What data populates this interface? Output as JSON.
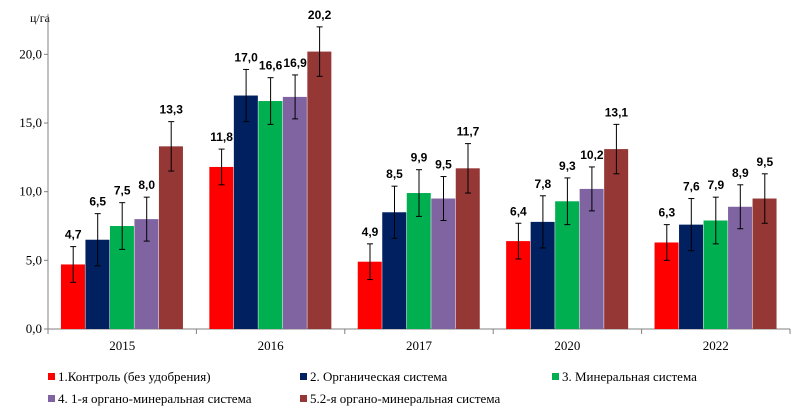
{
  "chart_data": {
    "type": "bar",
    "ylabel": "ц/га",
    "ylim": [
      0,
      22.5
    ],
    "yticks": [
      "0,0",
      "5,0",
      "10,0",
      "15,0",
      "20,0"
    ],
    "ytick_values": [
      0,
      5,
      10,
      15,
      20
    ],
    "grid": false,
    "legend_position": "bottom",
    "categories": [
      "2015",
      "2016",
      "2017",
      "2020",
      "2022"
    ],
    "series": [
      {
        "name": "1.Контроль (без удобрения)",
        "color": "#ff0000",
        "values": [
          4.7,
          11.8,
          4.9,
          6.4,
          6.3
        ],
        "labels": [
          "4,7",
          "11,8",
          "4,9",
          "6,4",
          "6,3"
        ],
        "error": [
          1.3,
          1.3,
          1.3,
          1.3,
          1.3
        ]
      },
      {
        "name": "2. Органическая система",
        "color": "#002060",
        "values": [
          6.5,
          17.0,
          8.5,
          7.8,
          7.6
        ],
        "labels": [
          "6,5",
          "17,0",
          "8,5",
          "7,8",
          "7,6"
        ],
        "error": [
          1.9,
          1.9,
          1.9,
          1.9,
          1.9
        ]
      },
      {
        "name": "3. Минеральная система",
        "color": "#00b050",
        "values": [
          7.5,
          16.6,
          9.9,
          9.3,
          7.9
        ],
        "labels": [
          "7,5",
          "16,6",
          "9,9",
          "9,3",
          "7,9"
        ],
        "error": [
          1.7,
          1.7,
          1.7,
          1.7,
          1.7
        ]
      },
      {
        "name": "4. 1-я органо-минеральная система",
        "color": "#8064a2",
        "values": [
          8.0,
          16.9,
          9.5,
          10.2,
          8.9
        ],
        "labels": [
          "8,0",
          "16,9",
          "9,5",
          "10,2",
          "8,9"
        ],
        "error": [
          1.6,
          1.6,
          1.6,
          1.6,
          1.6
        ]
      },
      {
        "name": "5.2-я органо-минеральная система",
        "color": "#953735",
        "values": [
          13.3,
          20.2,
          11.7,
          13.1,
          9.5
        ],
        "labels": [
          "13,3",
          "20,2",
          "11,7",
          "13,1",
          "9,5"
        ],
        "error": [
          1.8,
          1.8,
          1.8,
          1.8,
          1.8
        ]
      }
    ]
  }
}
